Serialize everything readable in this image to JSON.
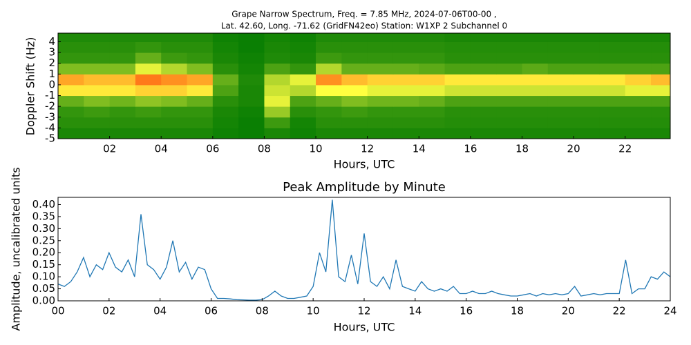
{
  "chart_data": [
    {
      "type": "heatmap",
      "title": "Grape Narrow Spectrum, Freq. = 7.85 MHz, 2024-07-06T00-00 ,",
      "subtitle": "Lat.  42.60, Long. -71.62 (GridFN42eo) Station: W1XP 2 Subchannel 0",
      "xlabel": "Hours, UTC",
      "ylabel": "Doppler Shift (Hz)",
      "x": [
        0,
        1,
        2,
        3,
        4,
        5,
        6,
        7,
        8,
        9,
        10,
        11,
        12,
        13,
        14,
        15,
        16,
        17,
        18,
        19,
        20,
        21,
        22,
        23,
        24
      ],
      "y": [
        -5,
        -4,
        -3,
        -2,
        -1,
        0,
        1,
        2,
        3,
        4,
        5
      ],
      "z": [
        [
          0.05,
          0.05,
          0.05,
          0.05,
          0.05,
          0.05,
          0.03,
          0.02,
          0.05,
          0.03,
          0.05,
          0.05,
          0.05,
          0.05,
          0.05,
          0.05,
          0.05,
          0.05,
          0.05,
          0.05,
          0.05,
          0.05,
          0.05,
          0.05
        ],
        [
          0.08,
          0.08,
          0.08,
          0.08,
          0.08,
          0.08,
          0.04,
          0.02,
          0.12,
          0.04,
          0.08,
          0.08,
          0.08,
          0.08,
          0.08,
          0.07,
          0.07,
          0.07,
          0.07,
          0.07,
          0.07,
          0.07,
          0.07,
          0.07
        ],
        [
          0.1,
          0.12,
          0.1,
          0.12,
          0.1,
          0.1,
          0.05,
          0.03,
          0.3,
          0.08,
          0.1,
          0.12,
          0.1,
          0.1,
          0.1,
          0.08,
          0.08,
          0.08,
          0.08,
          0.08,
          0.08,
          0.08,
          0.08,
          0.08
        ],
        [
          0.2,
          0.25,
          0.22,
          0.28,
          0.25,
          0.2,
          0.08,
          0.05,
          0.45,
          0.15,
          0.2,
          0.25,
          0.22,
          0.22,
          0.2,
          0.15,
          0.15,
          0.15,
          0.15,
          0.15,
          0.15,
          0.15,
          0.15,
          0.15
        ],
        [
          0.55,
          0.55,
          0.55,
          0.6,
          0.6,
          0.55,
          0.15,
          0.05,
          0.4,
          0.35,
          0.5,
          0.5,
          0.45,
          0.45,
          0.45,
          0.4,
          0.4,
          0.4,
          0.4,
          0.4,
          0.4,
          0.4,
          0.45,
          0.45
        ],
        [
          0.7,
          0.65,
          0.65,
          0.8,
          0.75,
          0.7,
          0.2,
          0.06,
          0.35,
          0.45,
          0.75,
          0.65,
          0.6,
          0.6,
          0.6,
          0.55,
          0.55,
          0.55,
          0.55,
          0.55,
          0.55,
          0.55,
          0.6,
          0.65
        ],
        [
          0.25,
          0.25,
          0.25,
          0.45,
          0.35,
          0.25,
          0.08,
          0.04,
          0.15,
          0.1,
          0.35,
          0.2,
          0.2,
          0.2,
          0.18,
          0.15,
          0.15,
          0.15,
          0.18,
          0.15,
          0.15,
          0.15,
          0.15,
          0.15
        ],
        [
          0.1,
          0.1,
          0.1,
          0.2,
          0.12,
          0.1,
          0.05,
          0.03,
          0.06,
          0.05,
          0.12,
          0.1,
          0.1,
          0.1,
          0.1,
          0.08,
          0.08,
          0.08,
          0.08,
          0.08,
          0.08,
          0.08,
          0.08,
          0.08
        ],
        [
          0.08,
          0.08,
          0.08,
          0.1,
          0.08,
          0.08,
          0.04,
          0.02,
          0.05,
          0.04,
          0.08,
          0.08,
          0.08,
          0.08,
          0.08,
          0.07,
          0.07,
          0.07,
          0.07,
          0.07,
          0.07,
          0.07,
          0.07,
          0.07
        ],
        [
          0.06,
          0.06,
          0.06,
          0.06,
          0.06,
          0.06,
          0.03,
          0.02,
          0.04,
          0.03,
          0.06,
          0.06,
          0.06,
          0.06,
          0.06,
          0.05,
          0.05,
          0.05,
          0.05,
          0.05,
          0.05,
          0.05,
          0.05,
          0.05
        ]
      ],
      "colorscale": [
        "#007a00",
        "#ffff40",
        "#ff2000"
      ],
      "xlim": [
        0,
        23.75
      ],
      "ylim": [
        -5,
        4.8
      ],
      "xticks": [
        {
          "value": 2,
          "label": "02"
        },
        {
          "value": 4,
          "label": "04"
        },
        {
          "value": 6,
          "label": "06"
        },
        {
          "value": 8,
          "label": "08"
        },
        {
          "value": 10,
          "label": "10"
        },
        {
          "value": 12,
          "label": "12"
        },
        {
          "value": 14,
          "label": "14"
        },
        {
          "value": 16,
          "label": "16"
        },
        {
          "value": 18,
          "label": "18"
        },
        {
          "value": 20,
          "label": "20"
        },
        {
          "value": 22,
          "label": "22"
        }
      ],
      "yticks": [
        -5,
        -4,
        -3,
        -2,
        -1,
        0,
        1,
        2,
        3,
        4
      ]
    },
    {
      "type": "line",
      "title": "Peak Amplitude by Minute",
      "xlabel": "Hours, UTC",
      "ylabel": "Amplitude, uncalibrated units",
      "x": [
        0,
        0.25,
        0.5,
        0.75,
        1,
        1.25,
        1.5,
        1.75,
        2,
        2.25,
        2.5,
        2.75,
        3,
        3.25,
        3.5,
        3.75,
        4,
        4.25,
        4.5,
        4.75,
        5,
        5.25,
        5.5,
        5.75,
        6,
        6.25,
        6.5,
        6.75,
        7,
        7.25,
        7.5,
        7.75,
        8,
        8.25,
        8.5,
        8.75,
        9,
        9.25,
        9.5,
        9.75,
        10,
        10.25,
        10.5,
        10.75,
        11,
        11.25,
        11.5,
        11.75,
        12,
        12.25,
        12.5,
        12.75,
        13,
        13.25,
        13.5,
        13.75,
        14,
        14.25,
        14.5,
        14.75,
        15,
        15.25,
        15.5,
        15.75,
        16,
        16.25,
        16.5,
        16.75,
        17,
        17.25,
        17.5,
        17.75,
        18,
        18.25,
        18.5,
        18.75,
        19,
        19.25,
        19.5,
        19.75,
        20,
        20.25,
        20.5,
        20.75,
        21,
        21.25,
        21.5,
        21.75,
        22,
        22.25,
        22.5,
        22.75,
        23,
        23.25,
        23.5,
        23.75,
        24
      ],
      "series": [
        {
          "name": "Peak Amplitude",
          "color": "#1f77b4",
          "values": [
            0.07,
            0.06,
            0.08,
            0.12,
            0.18,
            0.1,
            0.15,
            0.13,
            0.2,
            0.14,
            0.12,
            0.17,
            0.1,
            0.36,
            0.15,
            0.13,
            0.09,
            0.14,
            0.25,
            0.12,
            0.16,
            0.09,
            0.14,
            0.13,
            0.05,
            0.01,
            0.01,
            0.008,
            0.005,
            0.004,
            0.003,
            0.003,
            0.005,
            0.02,
            0.04,
            0.02,
            0.01,
            0.01,
            0.015,
            0.02,
            0.06,
            0.2,
            0.12,
            0.42,
            0.1,
            0.08,
            0.19,
            0.07,
            0.28,
            0.08,
            0.06,
            0.1,
            0.05,
            0.17,
            0.06,
            0.05,
            0.04,
            0.08,
            0.05,
            0.04,
            0.05,
            0.04,
            0.06,
            0.03,
            0.03,
            0.04,
            0.03,
            0.03,
            0.04,
            0.03,
            0.025,
            0.02,
            0.02,
            0.025,
            0.03,
            0.02,
            0.03,
            0.025,
            0.03,
            0.025,
            0.03,
            0.06,
            0.02,
            0.025,
            0.03,
            0.025,
            0.03,
            0.03,
            0.03,
            0.17,
            0.03,
            0.05,
            0.05,
            0.1,
            0.09,
            0.12,
            0.1
          ]
        }
      ],
      "xlim": [
        0,
        24
      ],
      "ylim": [
        0,
        0.43
      ],
      "xticks": [
        {
          "value": 0,
          "label": "00"
        },
        {
          "value": 2,
          "label": "02"
        },
        {
          "value": 4,
          "label": "04"
        },
        {
          "value": 6,
          "label": "06"
        },
        {
          "value": 8,
          "label": "08"
        },
        {
          "value": 10,
          "label": "10"
        },
        {
          "value": 12,
          "label": "12"
        },
        {
          "value": 14,
          "label": "14"
        },
        {
          "value": 16,
          "label": "16"
        },
        {
          "value": 18,
          "label": "18"
        },
        {
          "value": 20,
          "label": "20"
        },
        {
          "value": 22,
          "label": "22"
        },
        {
          "value": 24,
          "label": "24"
        }
      ],
      "yticks": [
        {
          "value": 0,
          "label": "0.00"
        },
        0.05,
        {
          "value": 0.1,
          "label": "0.10"
        },
        0.15,
        {
          "value": 0.2,
          "label": "0.20"
        },
        0.25,
        {
          "value": 0.3,
          "label": "0.30"
        },
        0.35,
        {
          "value": 0.4,
          "label": "0.40"
        }
      ]
    }
  ]
}
